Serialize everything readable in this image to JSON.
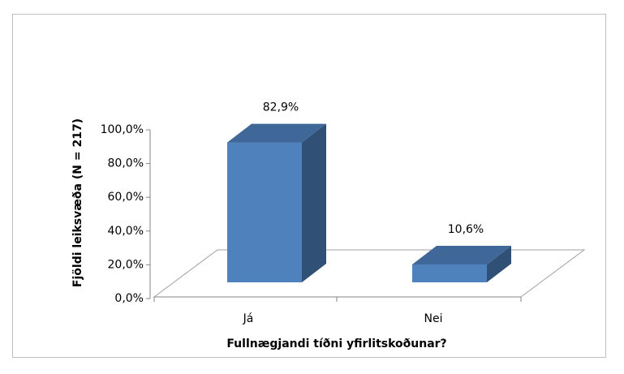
{
  "chart_data": {
    "type": "bar3d",
    "categories": [
      "Já",
      "Nei"
    ],
    "values": [
      82.9,
      10.6
    ],
    "value_labels": [
      "82,9%",
      "10,6%"
    ],
    "color": "#4f81bd",
    "ylim": [
      0,
      100
    ],
    "yticks": [
      {
        "value": 0,
        "label": "0,0%"
      },
      {
        "value": 20,
        "label": "20,0%"
      },
      {
        "value": 40,
        "label": "40,0%"
      },
      {
        "value": 60,
        "label": "60,0%"
      },
      {
        "value": 80,
        "label": "80,0%"
      },
      {
        "value": 100,
        "label": "100,0%"
      }
    ],
    "x_label": "Fullnægjandi tíðni yfirlitskoðunar?",
    "y_label": "Fjöldi leiksvæða (N = 217)",
    "grid": false
  }
}
